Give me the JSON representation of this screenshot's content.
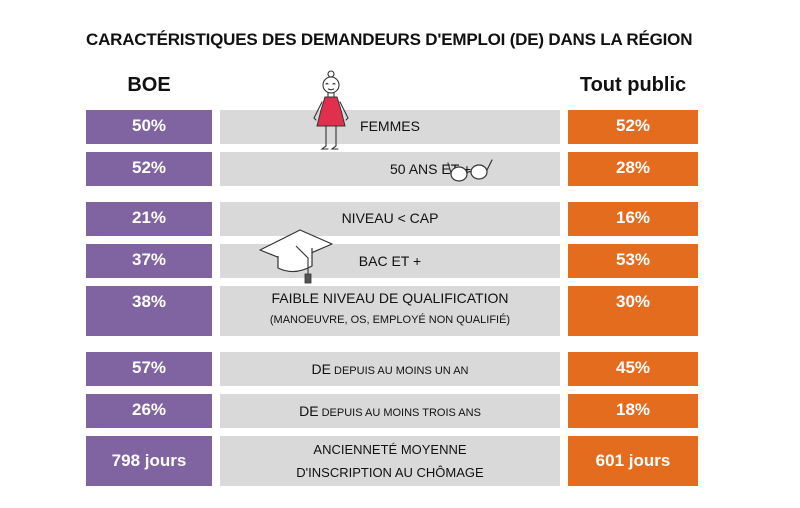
{
  "chart_data": {
    "type": "table",
    "title": "CARACTÉRISTIQUES DES DEMANDEURS D'EMPLOI (DE) DANS LA RÉGION",
    "columns": [
      "BOE",
      "Tout public"
    ],
    "colors": {
      "boe": "#8064a2",
      "tout_public": "#e46c1f",
      "label_bg": "#d9d9d9",
      "dress": "#e0304e"
    },
    "icons": [
      "woman-figure-icon",
      "glasses-icon",
      "graduation-cap-icon"
    ],
    "rows": [
      {
        "label": "FEMMES",
        "boe": "50%",
        "tout_public": "52%"
      },
      {
        "label": "50 ANS ET +",
        "boe": "52%",
        "tout_public": "28%"
      },
      {
        "label": "NIVEAU < CAP",
        "boe": "21%",
        "tout_public": "16%"
      },
      {
        "label": "BAC ET +",
        "boe": "37%",
        "tout_public": "53%"
      },
      {
        "label": "FAIBLE NIVEAU DE QUALIFICATION",
        "sublabel": "(MANOEUVRE, OS, EMPLOYÉ NON QUALIFIÉ)",
        "boe": "38%",
        "tout_public": "30%"
      },
      {
        "label_prefix": "DE",
        "label_rest": " DEPUIS AU MOINS UN AN",
        "boe": "57%",
        "tout_public": "45%"
      },
      {
        "label_prefix": "DE",
        "label_rest": " DEPUIS AU MOINS TROIS ANS",
        "boe": "26%",
        "tout_public": "18%"
      },
      {
        "label": "ANCIENNETÉ MOYENNE",
        "sublabel": "D'INSCRIPTION AU CHÔMAGE",
        "boe": "798 jours",
        "tout_public": "601 jours"
      }
    ]
  }
}
